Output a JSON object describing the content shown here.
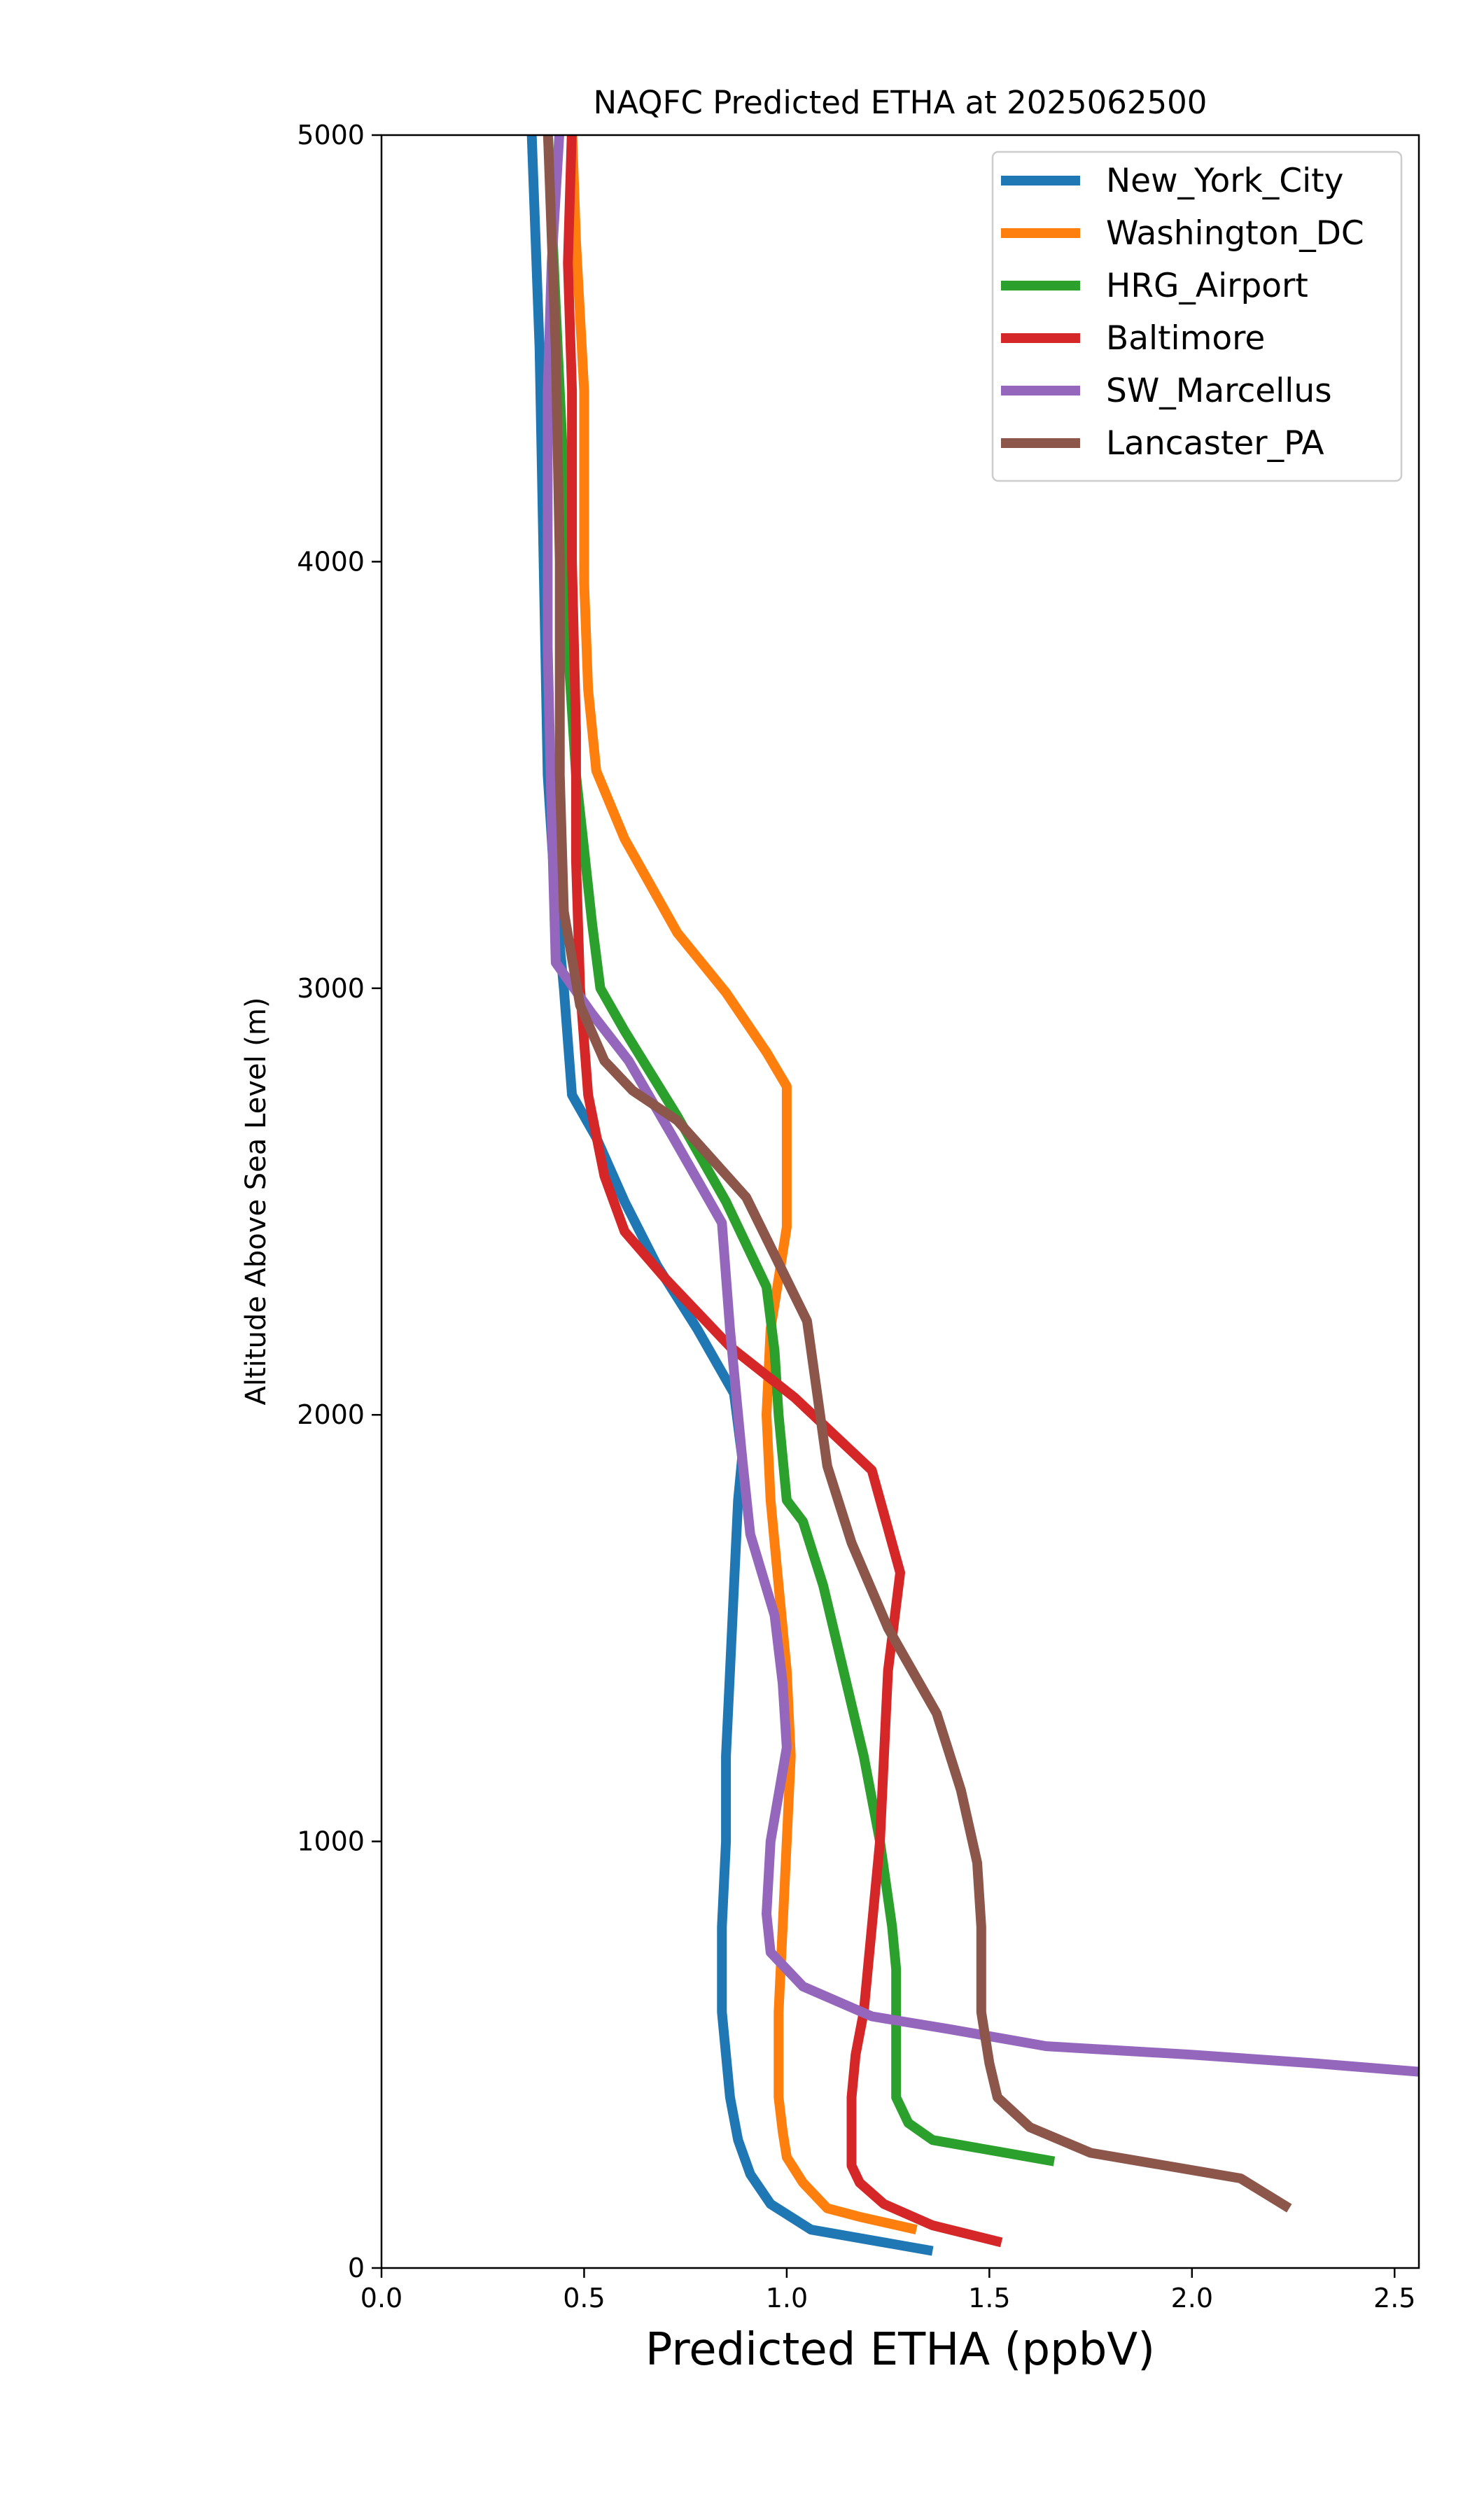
{
  "chart_data": {
    "type": "line",
    "title": "NAQFC Predicted ETHA at 2025062500",
    "xlabel": "Predicted ETHA (ppbV)",
    "ylabel": "Altitude Above Sea Level (m)",
    "xlim": [
      0.0,
      2.56
    ],
    "ylim": [
      0,
      5000
    ],
    "xticks": [
      "0.0",
      "0.5",
      "1.0",
      "1.5",
      "2.0",
      "2.5"
    ],
    "yticks": [
      "0",
      "1000",
      "2000",
      "3000",
      "4000",
      "5000"
    ],
    "grid": false,
    "legend_position": "top-right",
    "series": [
      {
        "name": "New_York_City",
        "color": "#1f77b4",
        "points": [
          [
            1.36,
            40
          ],
          [
            1.06,
            90
          ],
          [
            0.96,
            150
          ],
          [
            0.91,
            220
          ],
          [
            0.88,
            300
          ],
          [
            0.86,
            400
          ],
          [
            0.85,
            500
          ],
          [
            0.84,
            600
          ],
          [
            0.84,
            700
          ],
          [
            0.84,
            800
          ],
          [
            0.85,
            1000
          ],
          [
            0.85,
            1200
          ],
          [
            0.86,
            1400
          ],
          [
            0.87,
            1600
          ],
          [
            0.88,
            1800
          ],
          [
            0.89,
            1900
          ],
          [
            0.87,
            2050
          ],
          [
            0.78,
            2200
          ],
          [
            0.68,
            2350
          ],
          [
            0.6,
            2500
          ],
          [
            0.53,
            2650
          ],
          [
            0.47,
            2750
          ],
          [
            0.45,
            3000
          ],
          [
            0.43,
            3200
          ],
          [
            0.41,
            3500
          ],
          [
            0.4,
            4000
          ],
          [
            0.39,
            4500
          ],
          [
            0.37,
            5020
          ]
        ]
      },
      {
        "name": "Washington_DC",
        "color": "#ff7f0e",
        "points": [
          [
            1.32,
            90
          ],
          [
            1.18,
            120
          ],
          [
            1.1,
            140
          ],
          [
            1.04,
            200
          ],
          [
            1.0,
            260
          ],
          [
            0.99,
            320
          ],
          [
            0.98,
            400
          ],
          [
            0.98,
            500
          ],
          [
            0.98,
            600
          ],
          [
            0.99,
            800
          ],
          [
            1.0,
            1000
          ],
          [
            1.01,
            1200
          ],
          [
            1.0,
            1400
          ],
          [
            0.98,
            1600
          ],
          [
            0.96,
            1800
          ],
          [
            0.95,
            2000
          ],
          [
            0.96,
            2200
          ],
          [
            1.0,
            2440
          ],
          [
            1.0,
            2770
          ],
          [
            0.95,
            2850
          ],
          [
            0.85,
            2990
          ],
          [
            0.73,
            3130
          ],
          [
            0.6,
            3350
          ],
          [
            0.53,
            3510
          ],
          [
            0.51,
            3700
          ],
          [
            0.5,
            3950
          ],
          [
            0.5,
            4400
          ],
          [
            0.48,
            4750
          ],
          [
            0.47,
            5020
          ]
        ]
      },
      {
        "name": "HRG_Airport",
        "color": "#2ca02c",
        "points": [
          [
            1.66,
            250
          ],
          [
            1.36,
            300
          ],
          [
            1.3,
            340
          ],
          [
            1.27,
            400
          ],
          [
            1.27,
            500
          ],
          [
            1.27,
            600
          ],
          [
            1.27,
            700
          ],
          [
            1.26,
            800
          ],
          [
            1.23,
            1000
          ],
          [
            1.19,
            1200
          ],
          [
            1.14,
            1400
          ],
          [
            1.09,
            1600
          ],
          [
            1.04,
            1750
          ],
          [
            1.0,
            1800
          ],
          [
            0.98,
            2000
          ],
          [
            0.97,
            2150
          ],
          [
            0.95,
            2300
          ],
          [
            0.85,
            2500
          ],
          [
            0.73,
            2700
          ],
          [
            0.6,
            2900
          ],
          [
            0.54,
            3000
          ],
          [
            0.52,
            3150
          ],
          [
            0.48,
            3500
          ],
          [
            0.46,
            3800
          ],
          [
            0.45,
            4200
          ],
          [
            0.43,
            4600
          ],
          [
            0.41,
            5020
          ]
        ]
      },
      {
        "name": "Baltimore",
        "color": "#d62728",
        "points": [
          [
            1.53,
            60
          ],
          [
            1.36,
            100
          ],
          [
            1.24,
            150
          ],
          [
            1.18,
            200
          ],
          [
            1.16,
            240
          ],
          [
            1.16,
            300
          ],
          [
            1.16,
            400
          ],
          [
            1.17,
            500
          ],
          [
            1.19,
            600
          ],
          [
            1.21,
            800
          ],
          [
            1.23,
            1000
          ],
          [
            1.24,
            1200
          ],
          [
            1.25,
            1400
          ],
          [
            1.28,
            1630
          ],
          [
            1.21,
            1870
          ],
          [
            1.02,
            2040
          ],
          [
            0.86,
            2160
          ],
          [
            0.7,
            2320
          ],
          [
            0.6,
            2430
          ],
          [
            0.55,
            2560
          ],
          [
            0.51,
            2750
          ],
          [
            0.49,
            3000
          ],
          [
            0.48,
            3300
          ],
          [
            0.48,
            3600
          ],
          [
            0.47,
            4000
          ],
          [
            0.47,
            4400
          ],
          [
            0.46,
            4700
          ],
          [
            0.47,
            5020
          ]
        ]
      },
      {
        "name": "SW_Marcellus",
        "color": "#9467bd",
        "points": [
          [
            2.56,
            460
          ],
          [
            2.3,
            480
          ],
          [
            2.0,
            500
          ],
          [
            1.64,
            520
          ],
          [
            1.4,
            560
          ],
          [
            1.21,
            590
          ],
          [
            1.04,
            660
          ],
          [
            0.96,
            740
          ],
          [
            0.95,
            830
          ],
          [
            0.96,
            1000
          ],
          [
            1.0,
            1220
          ],
          [
            0.99,
            1370
          ],
          [
            0.97,
            1530
          ],
          [
            0.91,
            1720
          ],
          [
            0.89,
            1900
          ],
          [
            0.86,
            2200
          ],
          [
            0.84,
            2450
          ],
          [
            0.72,
            2650
          ],
          [
            0.61,
            2830
          ],
          [
            0.52,
            2940
          ],
          [
            0.43,
            3060
          ],
          [
            0.42,
            3400
          ],
          [
            0.41,
            3800
          ],
          [
            0.41,
            4400
          ],
          [
            0.42,
            4700
          ],
          [
            0.44,
            5020
          ]
        ]
      },
      {
        "name": "Lancaster_PA",
        "color": "#8c564b",
        "points": [
          [
            2.24,
            140
          ],
          [
            2.12,
            210
          ],
          [
            1.75,
            270
          ],
          [
            1.6,
            330
          ],
          [
            1.52,
            400
          ],
          [
            1.5,
            480
          ],
          [
            1.48,
            600
          ],
          [
            1.48,
            800
          ],
          [
            1.47,
            950
          ],
          [
            1.43,
            1120
          ],
          [
            1.37,
            1300
          ],
          [
            1.25,
            1500
          ],
          [
            1.16,
            1700
          ],
          [
            1.1,
            1880
          ],
          [
            1.05,
            2220
          ],
          [
            0.9,
            2510
          ],
          [
            0.73,
            2690
          ],
          [
            0.62,
            2760
          ],
          [
            0.55,
            2830
          ],
          [
            0.49,
            2960
          ],
          [
            0.45,
            3180
          ],
          [
            0.44,
            3500
          ],
          [
            0.44,
            4000
          ],
          [
            0.43,
            4500
          ],
          [
            0.41,
            5020
          ]
        ]
      }
    ]
  }
}
